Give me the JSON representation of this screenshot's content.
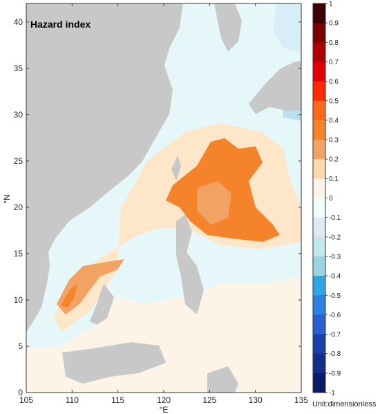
{
  "map": {
    "title": "Hazard index",
    "x_axis_label": "°E",
    "y_axis_label": "°N",
    "x_ticks": [
      "105",
      "110",
      "115",
      "120",
      "125",
      "130",
      "135"
    ],
    "y_ticks": [
      "0",
      "5",
      "10",
      "15",
      "20",
      "25",
      "30",
      "35",
      "40"
    ],
    "lon_range": [
      105,
      135
    ],
    "lat_range": [
      0,
      42
    ],
    "land_color": "#c8c8c8",
    "regions": [
      {
        "name": "sea-background",
        "level": 0.05,
        "color": "#e6f7fa"
      },
      {
        "name": "east-china-sea-band",
        "level": 0.15,
        "color": "#fde7c8"
      },
      {
        "name": "southern-sea-band",
        "level": 0.1,
        "color": "#fdf3e6"
      },
      {
        "name": "luzon-strait-core",
        "level": 0.4,
        "color": "#f4832b"
      },
      {
        "name": "vietnam-coast-core",
        "level": 0.3,
        "color": "#f2a262"
      }
    ]
  },
  "colorbar": {
    "labels": [
      "1",
      "0.9",
      "0.8",
      "0.7",
      "0.6",
      "0.5",
      "0.4",
      "0.3",
      "0.2",
      "0.1",
      "0",
      "-0.1",
      "-0.2",
      "-0.3",
      "-0.4",
      "-0.5",
      "-0.6",
      "-0.7",
      "-0.8",
      "-0.9",
      "-1"
    ],
    "colors": [
      "#3d0000",
      "#7a0000",
      "#b00000",
      "#e00000",
      "#ff2a00",
      "#ff6a1a",
      "#f4832b",
      "#f2a262",
      "#fcd9a8",
      "#fdf3e6",
      "#f2fbfd",
      "#dde9f6",
      "#c4e7ed",
      "#9ad4e2",
      "#2fa7e6",
      "#2f7fe0",
      "#2a5fd0",
      "#1c3fa8",
      "#152c8a",
      "#0b1a66"
    ],
    "unit_text": "Unit:dimensionless"
  }
}
